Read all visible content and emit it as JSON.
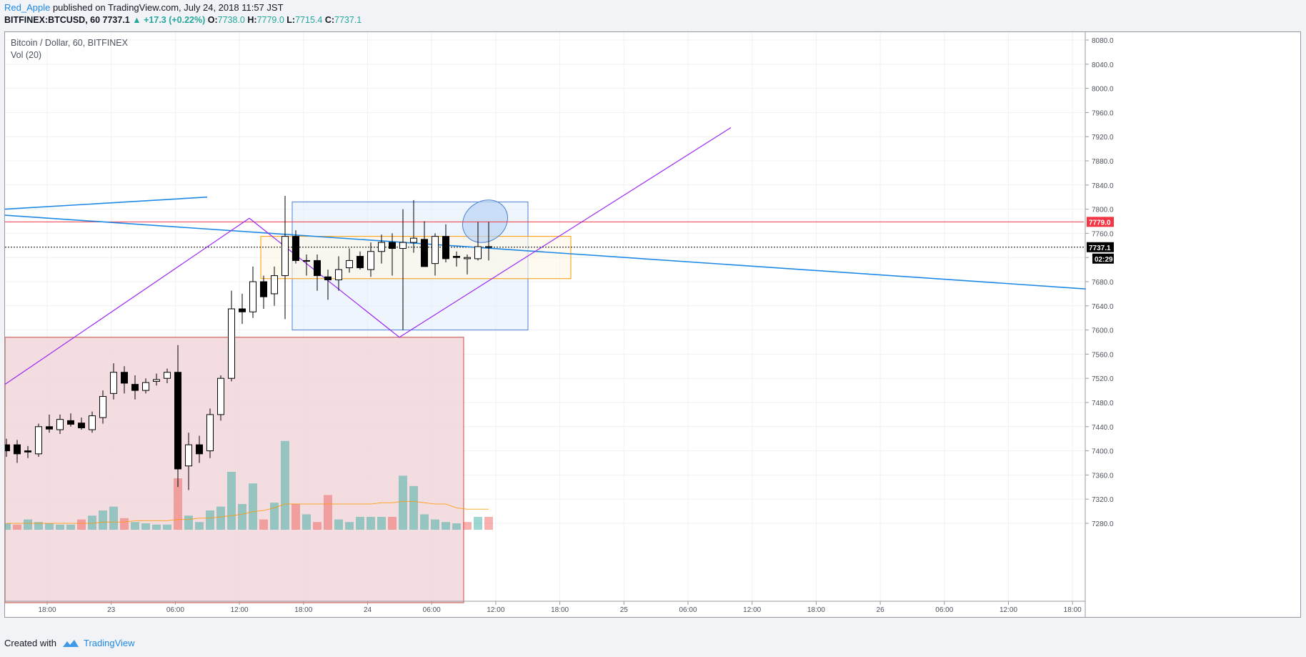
{
  "header": {
    "author": "Red_Apple",
    "published_text": "published on TradingView.com, July 24, 2018 11:57 JST",
    "symbol": "BITFINEX:BTCUSD, 60",
    "last": "7737.1",
    "change": "+17.3 (+0.22%)",
    "o_label": "O:",
    "o_value": "7738.0",
    "h_label": "H:",
    "h_value": "7779.0",
    "l_label": "L:",
    "l_value": "7715.4",
    "c_label": "C:",
    "c_value": "7737.1"
  },
  "legend": {
    "title": "Bitcoin / Dollar, 60, BITFINEX",
    "volume": "Vol (20)"
  },
  "footer": {
    "created_with": "Created with",
    "brand": "TradingView"
  },
  "colors": {
    "up_candle_fill": "#ffffff",
    "down_candle_fill": "#000000",
    "volume_up": "#26a69a",
    "volume_down": "#ef5350",
    "trendline": "#1e88e5",
    "zigzag": "#9c27f5",
    "resistance": "#f23645",
    "zone": "#ff9800",
    "box_fill": "#e3eefb",
    "loss_box_fill": "#f2dadd"
  },
  "chart_data": {
    "type": "candlestick",
    "title": "Bitcoin / Dollar, 60, BITFINEX",
    "y_axis": {
      "range": [
        7260,
        8100
      ],
      "ticks": [
        "8080.0",
        "8040.0",
        "8000.0",
        "7960.0",
        "7920.0",
        "7880.0",
        "7840.0",
        "7800.0",
        "7760.0",
        "7720.0",
        "7680.0",
        "7640.0",
        "7600.0",
        "7560.0",
        "7520.0",
        "7480.0",
        "7440.0",
        "7400.0",
        "7360.0",
        "7320.0",
        "7280.0"
      ]
    },
    "x_axis": {
      "ticks": [
        "18:00",
        "23",
        "06:00",
        "12:00",
        "18:00",
        "24",
        "06:00",
        "12:00",
        "18:00",
        "25",
        "06:00",
        "12:00",
        "18:00",
        "26",
        "06:00",
        "12:00",
        "18:00"
      ]
    },
    "price_labels": {
      "resistance": "7779.0",
      "last": "7737.1",
      "countdown": "02:29"
    },
    "candles": [
      {
        "t": "13:00",
        "o": 7410,
        "h": 7420,
        "l": 7390,
        "c": 7400
      },
      {
        "t": "14:00",
        "o": 7410,
        "h": 7418,
        "l": 7380,
        "c": 7395
      },
      {
        "t": "15:00",
        "o": 7400,
        "h": 7408,
        "l": 7388,
        "c": 7398
      },
      {
        "t": "16:00",
        "o": 7395,
        "h": 7445,
        "l": 7390,
        "c": 7440
      },
      {
        "t": "17:00",
        "o": 7440,
        "h": 7460,
        "l": 7430,
        "c": 7436
      },
      {
        "t": "18:00",
        "o": 7435,
        "h": 7460,
        "l": 7428,
        "c": 7452
      },
      {
        "t": "19:00",
        "o": 7450,
        "h": 7462,
        "l": 7440,
        "c": 7444
      },
      {
        "t": "20:00",
        "o": 7446,
        "h": 7455,
        "l": 7435,
        "c": 7438
      },
      {
        "t": "21:00",
        "o": 7435,
        "h": 7465,
        "l": 7430,
        "c": 7458
      },
      {
        "t": "22:00",
        "o": 7455,
        "h": 7500,
        "l": 7445,
        "c": 7490
      },
      {
        "t": "23:00",
        "o": 7495,
        "h": 7545,
        "l": 7485,
        "c": 7530
      },
      {
        "t": "00:00",
        "o": 7530,
        "h": 7540,
        "l": 7495,
        "c": 7512
      },
      {
        "t": "01:00",
        "o": 7510,
        "h": 7525,
        "l": 7485,
        "c": 7500
      },
      {
        "t": "02:00",
        "o": 7500,
        "h": 7520,
        "l": 7495,
        "c": 7513
      },
      {
        "t": "03:00",
        "o": 7515,
        "h": 7528,
        "l": 7508,
        "c": 7518
      },
      {
        "t": "04:00",
        "o": 7520,
        "h": 7536,
        "l": 7512,
        "c": 7530
      },
      {
        "t": "05:00",
        "o": 7530,
        "h": 7575,
        "l": 7340,
        "c": 7370
      },
      {
        "t": "06:00",
        "o": 7375,
        "h": 7430,
        "l": 7335,
        "c": 7410
      },
      {
        "t": "07:00",
        "o": 7410,
        "h": 7425,
        "l": 7380,
        "c": 7395
      },
      {
        "t": "08:00",
        "o": 7400,
        "h": 7470,
        "l": 7388,
        "c": 7460
      },
      {
        "t": "09:00",
        "o": 7460,
        "h": 7525,
        "l": 7450,
        "c": 7520
      },
      {
        "t": "10:00",
        "o": 7520,
        "h": 7665,
        "l": 7515,
        "c": 7635
      },
      {
        "t": "11:00",
        "o": 7635,
        "h": 7660,
        "l": 7610,
        "c": 7630
      },
      {
        "t": "12:00",
        "o": 7630,
        "h": 7705,
        "l": 7620,
        "c": 7680
      },
      {
        "t": "13:00",
        "o": 7680,
        "h": 7690,
        "l": 7635,
        "c": 7655
      },
      {
        "t": "14:00",
        "o": 7660,
        "h": 7705,
        "l": 7640,
        "c": 7690
      },
      {
        "t": "15:00",
        "o": 7690,
        "h": 7822,
        "l": 7618,
        "c": 7755
      },
      {
        "t": "16:00",
        "o": 7755,
        "h": 7765,
        "l": 7710,
        "c": 7715
      },
      {
        "t": "17:00",
        "o": 7715,
        "h": 7725,
        "l": 7690,
        "c": 7714
      },
      {
        "t": "18:00",
        "o": 7715,
        "h": 7725,
        "l": 7665,
        "c": 7690
      },
      {
        "t": "19:00",
        "o": 7688,
        "h": 7700,
        "l": 7650,
        "c": 7683
      },
      {
        "t": "20:00",
        "o": 7683,
        "h": 7722,
        "l": 7665,
        "c": 7700
      },
      {
        "t": "21:00",
        "o": 7703,
        "h": 7735,
        "l": 7695,
        "c": 7715
      },
      {
        "t": "22:00",
        "o": 7722,
        "h": 7730,
        "l": 7700,
        "c": 7703
      },
      {
        "t": "23:00",
        "o": 7700,
        "h": 7745,
        "l": 7688,
        "c": 7730
      },
      {
        "t": "00:00",
        "o": 7730,
        "h": 7758,
        "l": 7710,
        "c": 7745
      },
      {
        "t": "01:00",
        "o": 7745,
        "h": 7760,
        "l": 7690,
        "c": 7735
      },
      {
        "t": "02:00",
        "o": 7735,
        "h": 7800,
        "l": 7600,
        "c": 7745
      },
      {
        "t": "03:00",
        "o": 7745,
        "h": 7815,
        "l": 7728,
        "c": 7752
      },
      {
        "t": "04:00",
        "o": 7750,
        "h": 7780,
        "l": 7705,
        "c": 7705
      },
      {
        "t": "05:00",
        "o": 7710,
        "h": 7760,
        "l": 7690,
        "c": 7755
      },
      {
        "t": "06:00",
        "o": 7755,
        "h": 7775,
        "l": 7712,
        "c": 7718
      },
      {
        "t": "07:00",
        "o": 7722,
        "h": 7730,
        "l": 7705,
        "c": 7720
      },
      {
        "t": "08:00",
        "o": 7718,
        "h": 7725,
        "l": 7692,
        "c": 7720
      },
      {
        "t": "09:00",
        "o": 7718,
        "h": 7779,
        "l": 7715,
        "c": 7738
      },
      {
        "t": "10:00",
        "o": 7738,
        "h": 7779,
        "l": 7715,
        "c": 7737
      }
    ],
    "volume_bars_relative": [
      0.05,
      0.04,
      0.08,
      0.06,
      0.05,
      0.04,
      0.04,
      0.08,
      0.11,
      0.15,
      0.18,
      0.09,
      0.06,
      0.05,
      0.04,
      0.04,
      0.4,
      0.11,
      0.06,
      0.15,
      0.18,
      0.45,
      0.2,
      0.36,
      0.08,
      0.21,
      0.69,
      0.2,
      0.12,
      0.06,
      0.27,
      0.08,
      0.06,
      0.1,
      0.1,
      0.1,
      0.1,
      0.42,
      0.34,
      0.12,
      0.08,
      0.06,
      0.05,
      0.06,
      0.1,
      0.1
    ],
    "volume_bar_up": [
      true,
      false,
      true,
      true,
      true,
      true,
      true,
      false,
      true,
      true,
      true,
      false,
      true,
      true,
      true,
      true,
      false,
      true,
      true,
      true,
      true,
      true,
      true,
      true,
      false,
      true,
      true,
      false,
      true,
      false,
      false,
      true,
      true,
      true,
      true,
      true,
      false,
      true,
      true,
      true,
      true,
      true,
      true,
      false,
      true,
      false
    ],
    "volume_ma_relative": [
      0.05,
      0.05,
      0.05,
      0.05,
      0.05,
      0.05,
      0.05,
      0.05,
      0.05,
      0.06,
      0.06,
      0.06,
      0.07,
      0.07,
      0.07,
      0.07,
      0.08,
      0.08,
      0.09,
      0.09,
      0.1,
      0.11,
      0.12,
      0.14,
      0.15,
      0.17,
      0.2,
      0.2,
      0.2,
      0.2,
      0.2,
      0.2,
      0.2,
      0.2,
      0.2,
      0.21,
      0.21,
      0.22,
      0.22,
      0.21,
      0.2,
      0.2,
      0.17,
      0.16,
      0.16,
      0.16
    ]
  }
}
